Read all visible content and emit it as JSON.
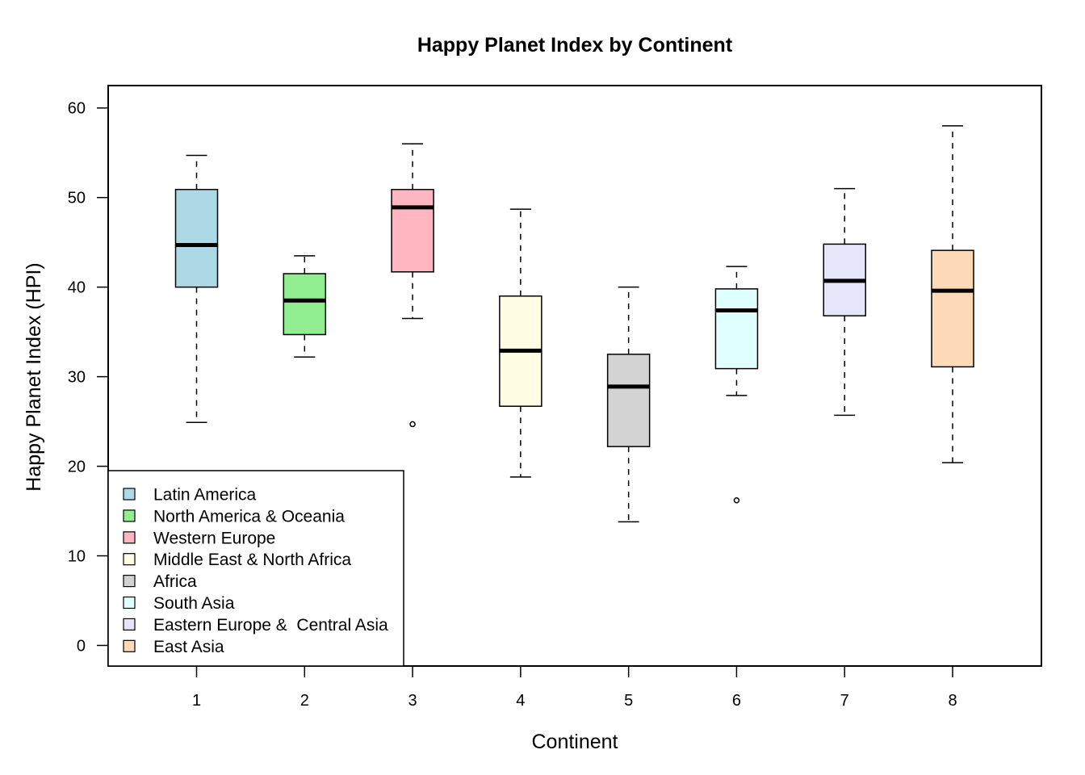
{
  "chart_data": {
    "type": "box",
    "title": "Happy Planet Index by Continent",
    "xlabel": "Continent",
    "ylabel": "Happy Planet Index (HPI)",
    "ylim": [
      -2.3,
      62.5
    ],
    "yticks": [
      0,
      10,
      20,
      30,
      40,
      50,
      60
    ],
    "categories": [
      "1",
      "2",
      "3",
      "4",
      "5",
      "6",
      "7",
      "8"
    ],
    "boxes": [
      {
        "category": "1",
        "whisker_low": 24.9,
        "q1": 40.0,
        "median": 44.7,
        "q3": 50.9,
        "whisker_high": 54.7,
        "outliers": [],
        "color": "#ADD8E6"
      },
      {
        "category": "2",
        "whisker_low": 32.2,
        "q1": 34.7,
        "median": 38.5,
        "q3": 41.5,
        "whisker_high": 43.5,
        "outliers": [],
        "color": "#90EE90"
      },
      {
        "category": "3",
        "whisker_low": 36.5,
        "q1": 41.7,
        "median": 48.9,
        "q3": 50.9,
        "whisker_high": 56.0,
        "outliers": [
          24.7
        ],
        "color": "#FFB6C1"
      },
      {
        "category": "4",
        "whisker_low": 18.8,
        "q1": 26.7,
        "median": 32.9,
        "q3": 39.0,
        "whisker_high": 48.7,
        "outliers": [],
        "color": "#FFFDE3"
      },
      {
        "category": "5",
        "whisker_low": 13.8,
        "q1": 22.2,
        "median": 28.9,
        "q3": 32.5,
        "whisker_high": 40.0,
        "outliers": [],
        "color": "#D3D3D3"
      },
      {
        "category": "6",
        "whisker_low": 27.9,
        "q1": 30.9,
        "median": 37.4,
        "q3": 39.8,
        "whisker_high": 42.3,
        "outliers": [
          16.2
        ],
        "color": "#E0FFFF"
      },
      {
        "category": "7",
        "whisker_low": 25.7,
        "q1": 36.8,
        "median": 40.7,
        "q3": 44.8,
        "whisker_high": 51.0,
        "outliers": [],
        "color": "#E6E6FA"
      },
      {
        "category": "8",
        "whisker_low": 20.4,
        "q1": 31.1,
        "median": 39.6,
        "q3": 44.1,
        "whisker_high": 58.0,
        "outliers": [],
        "color": "#FFDAB9"
      }
    ],
    "legend": {
      "position": "bottom-left",
      "entries": [
        {
          "label": "Latin America",
          "color": "#ADD8E6"
        },
        {
          "label": "North America & Oceania",
          "color": "#90EE90"
        },
        {
          "label": "Western Europe",
          "color": "#FFB6C1"
        },
        {
          "label": "Middle East & North Africa",
          "color": "#FFFDE3"
        },
        {
          "label": "Africa",
          "color": "#D3D3D3"
        },
        {
          "label": "South Asia",
          "color": "#E0FFFF"
        },
        {
          "label": "Eastern Europe &  Central Asia",
          "color": "#E6E6FA"
        },
        {
          "label": "East Asia",
          "color": "#FFDAB9"
        }
      ]
    },
    "grid": false
  }
}
